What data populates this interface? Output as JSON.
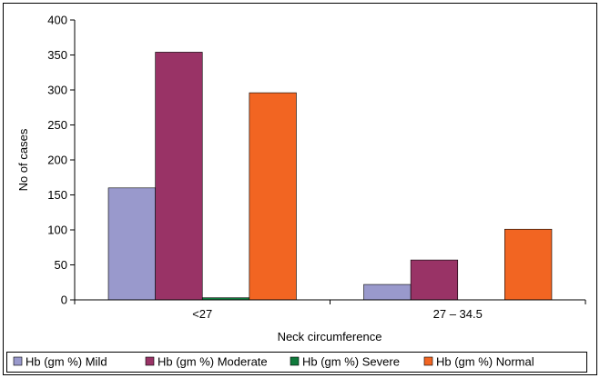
{
  "chart_data": {
    "type": "bar",
    "categories": [
      "<27",
      "27 – 34.5"
    ],
    "series": [
      {
        "name": "Hb (gm %) Mild",
        "color": "#9999cc",
        "values": [
          160,
          22
        ]
      },
      {
        "name": "Hb (gm %) Moderate",
        "color": "#993366",
        "values": [
          354,
          57
        ]
      },
      {
        "name": "Hb (gm %) Severe",
        "color": "#107a3c",
        "values": [
          3,
          0
        ]
      },
      {
        "name": "Hb (gm %) Normal",
        "color": "#f26522",
        "values": [
          296,
          101
        ]
      }
    ],
    "xlabel": "Neck circumference",
    "ylabel": "No of cases",
    "ylim": [
      0,
      400
    ],
    "yticks": [
      0,
      50,
      100,
      150,
      200,
      250,
      300,
      350,
      400
    ],
    "grid": false,
    "legend_position": "bottom"
  }
}
